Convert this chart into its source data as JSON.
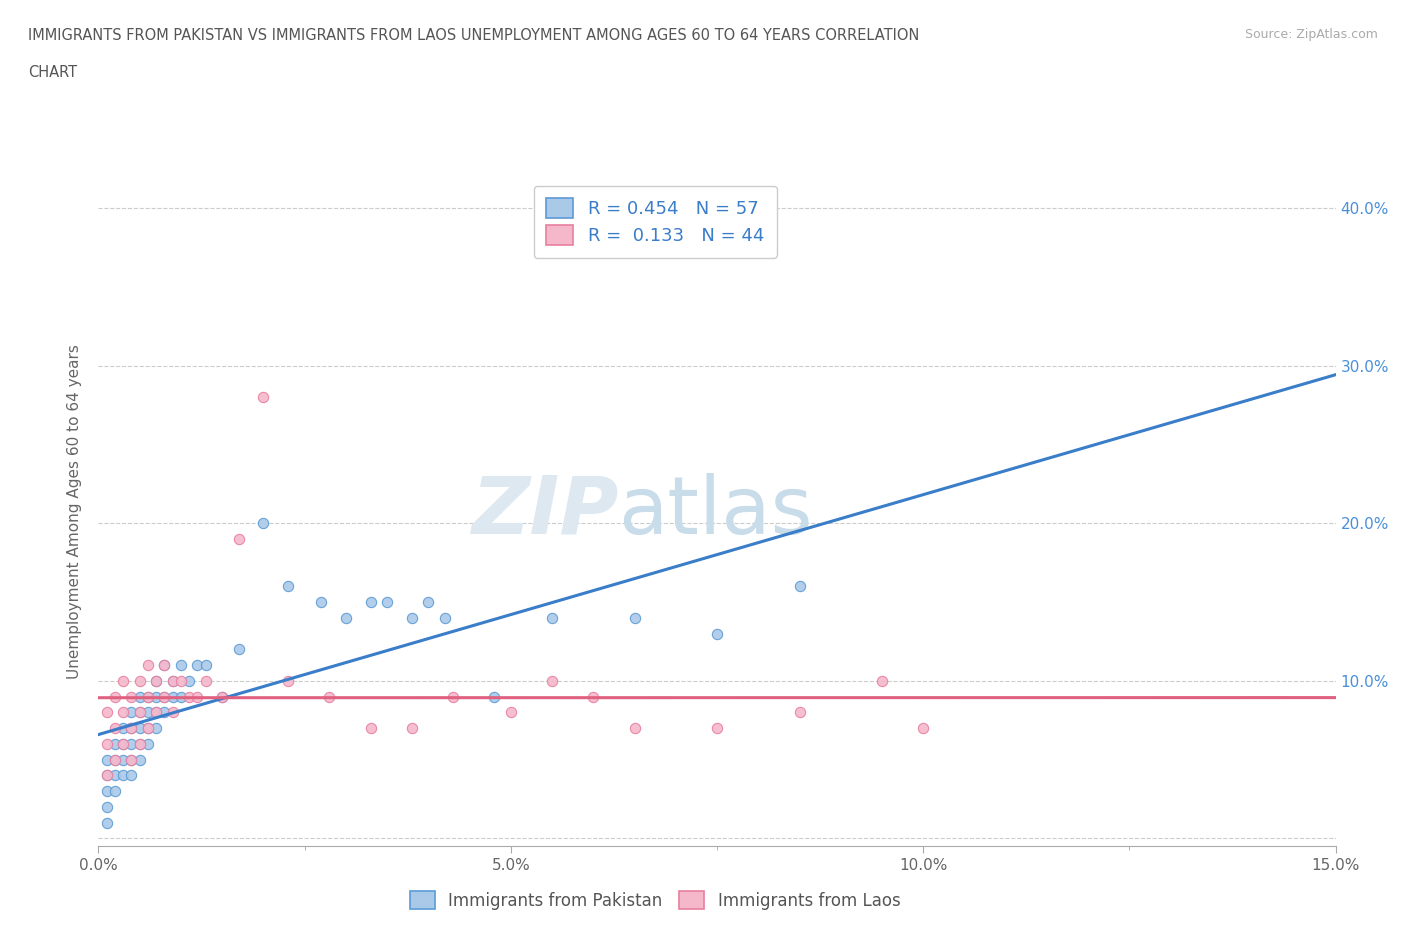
{
  "title_line1": "IMMIGRANTS FROM PAKISTAN VS IMMIGRANTS FROM LAOS UNEMPLOYMENT AMONG AGES 60 TO 64 YEARS CORRELATION",
  "title_line2": "CHART",
  "source": "Source: ZipAtlas.com",
  "ylabel": "Unemployment Among Ages 60 to 64 years",
  "xlim": [
    0.0,
    0.15
  ],
  "ylim": [
    -0.005,
    0.42
  ],
  "x_ticks": [
    0.0,
    0.05,
    0.1,
    0.15
  ],
  "x_tick_labels": [
    "0.0%",
    "5.0%",
    "10.0%",
    "15.0%"
  ],
  "y_ticks": [
    0.0,
    0.1,
    0.2,
    0.3,
    0.4
  ],
  "y_tick_labels": [
    "",
    "10.0%",
    "20.0%",
    "30.0%",
    "40.0%"
  ],
  "pakistan_color": "#aac9e8",
  "laos_color": "#f5b8cb",
  "pakistan_edge_color": "#5b9bd5",
  "laos_edge_color": "#e87fa0",
  "pakistan_line_color": "#3a7dc9",
  "laos_line_color": "#e06080",
  "R_pakistan": 0.454,
  "N_pakistan": 57,
  "R_laos": 0.133,
  "N_laos": 44,
  "watermark_zip": "ZIP",
  "watermark_atlas": "atlas",
  "legend_label_pakistan": "Immigrants from Pakistan",
  "legend_label_laos": "Immigrants from Laos",
  "pakistan_x": [
    0.001,
    0.001,
    0.001,
    0.001,
    0.001,
    0.002,
    0.002,
    0.002,
    0.002,
    0.003,
    0.003,
    0.003,
    0.003,
    0.004,
    0.004,
    0.004,
    0.004,
    0.004,
    0.005,
    0.005,
    0.005,
    0.005,
    0.005,
    0.006,
    0.006,
    0.006,
    0.006,
    0.007,
    0.007,
    0.007,
    0.007,
    0.008,
    0.008,
    0.008,
    0.009,
    0.009,
    0.01,
    0.01,
    0.011,
    0.012,
    0.013,
    0.015,
    0.017,
    0.02,
    0.023,
    0.027,
    0.03,
    0.033,
    0.035,
    0.038,
    0.04,
    0.042,
    0.048,
    0.055,
    0.065,
    0.075,
    0.085
  ],
  "pakistan_y": [
    0.04,
    0.02,
    0.03,
    0.05,
    0.01,
    0.04,
    0.06,
    0.03,
    0.05,
    0.05,
    0.07,
    0.04,
    0.06,
    0.05,
    0.07,
    0.06,
    0.08,
    0.04,
    0.06,
    0.08,
    0.07,
    0.05,
    0.09,
    0.07,
    0.08,
    0.06,
    0.09,
    0.08,
    0.09,
    0.07,
    0.1,
    0.08,
    0.09,
    0.11,
    0.09,
    0.1,
    0.09,
    0.11,
    0.1,
    0.11,
    0.11,
    0.09,
    0.12,
    0.2,
    0.16,
    0.15,
    0.14,
    0.15,
    0.15,
    0.14,
    0.15,
    0.14,
    0.09,
    0.14,
    0.14,
    0.13,
    0.16
  ],
  "laos_x": [
    0.001,
    0.001,
    0.001,
    0.002,
    0.002,
    0.002,
    0.003,
    0.003,
    0.003,
    0.004,
    0.004,
    0.004,
    0.005,
    0.005,
    0.005,
    0.006,
    0.006,
    0.006,
    0.007,
    0.007,
    0.008,
    0.008,
    0.009,
    0.009,
    0.01,
    0.011,
    0.012,
    0.013,
    0.015,
    0.017,
    0.02,
    0.023,
    0.028,
    0.033,
    0.038,
    0.043,
    0.05,
    0.055,
    0.06,
    0.065,
    0.075,
    0.085,
    0.095,
    0.1
  ],
  "laos_y": [
    0.04,
    0.06,
    0.08,
    0.05,
    0.07,
    0.09,
    0.06,
    0.08,
    0.1,
    0.07,
    0.09,
    0.05,
    0.08,
    0.1,
    0.06,
    0.09,
    0.11,
    0.07,
    0.1,
    0.08,
    0.09,
    0.11,
    0.1,
    0.08,
    0.1,
    0.09,
    0.09,
    0.1,
    0.09,
    0.19,
    0.28,
    0.1,
    0.09,
    0.07,
    0.07,
    0.09,
    0.08,
    0.1,
    0.09,
    0.07,
    0.07,
    0.08,
    0.1,
    0.07
  ]
}
